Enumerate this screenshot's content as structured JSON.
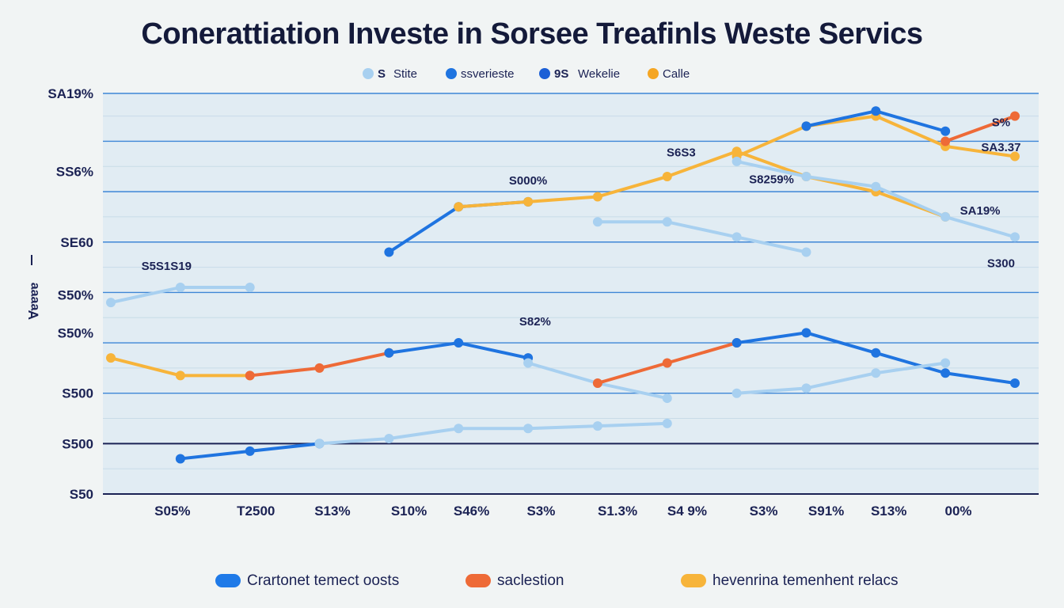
{
  "chart_data": {
    "type": "line",
    "title": "Conerattiation Investe in Sorsee Treafinls Weste Servics",
    "ylabel": "Ɐɐɐɐɐ",
    "y_tick_labels": [
      "S50",
      "S500",
      "S500",
      "S50%",
      "S50%",
      "SE60",
      "SS6%",
      "SA19%"
    ],
    "x_tick_labels": [
      "S05%",
      "T2500",
      "S13%",
      "S10%",
      "S46%",
      "S3%",
      "S1.3%",
      "S4 9%",
      "S3%",
      "S91%",
      "S13%",
      "00%"
    ],
    "x": [
      0,
      1,
      2,
      3,
      4,
      5,
      6,
      7,
      8,
      9,
      10,
      11,
      12,
      13
    ],
    "ylim": [
      0,
      7.95
    ],
    "grid": true,
    "top_legend": [
      {
        "label": "Stite",
        "marker": "S",
        "color": "#a8d0f0"
      },
      {
        "label": "ssverieste",
        "color": "#1f74e0"
      },
      {
        "label": "Wekelie",
        "marker": "9S",
        "color": "#1b5fd6"
      },
      {
        "label": "Calle",
        "color": "#f5a623"
      }
    ],
    "bottom_legend": [
      {
        "label": "Crartonet temect oosts",
        "color": "#1f7ae8"
      },
      {
        "label": "saclestion",
        "color": "#ee6a37"
      },
      {
        "label": "hevenrina temenhent relacs",
        "color": "#f7b43a"
      }
    ],
    "annotations": [
      {
        "text": "S5S1S19",
        "x": 0.8,
        "y": 4.45
      },
      {
        "text": "S000%",
        "x": 6.0,
        "y": 6.14
      },
      {
        "text": "S6S3",
        "x": 8.2,
        "y": 6.7
      },
      {
        "text": "S8259%",
        "x": 9.5,
        "y": 6.17
      },
      {
        "text": "S82%",
        "x": 6.1,
        "y": 3.35
      },
      {
        "text": "S%",
        "x": 12.8,
        "y": 7.3
      },
      {
        "text": "SA3.37",
        "x": 12.8,
        "y": 6.8
      },
      {
        "text": "SA19%",
        "x": 12.5,
        "y": 5.55
      },
      {
        "text": "S300",
        "x": 12.8,
        "y": 4.5
      }
    ],
    "series": [
      {
        "color": "#1f74e0",
        "width": 4,
        "values": [
          null,
          null,
          null,
          null,
          4.8,
          5.7,
          5.8,
          null,
          null,
          null,
          null,
          null,
          null,
          null
        ]
      },
      {
        "color": "#a8d0f0",
        "width": 4,
        "values": [
          3.8,
          4.1,
          4.1,
          null,
          null,
          null,
          null,
          5.4,
          5.4,
          5.1,
          4.8,
          null,
          null,
          null
        ]
      },
      {
        "color": "#f7b43a",
        "width": 4,
        "values": [
          null,
          null,
          null,
          null,
          null,
          5.7,
          5.8,
          5.9,
          6.3,
          6.8,
          6.3,
          6.0,
          5.5,
          null
        ]
      },
      {
        "color": "#f7b43a",
        "width": 4,
        "values": [
          null,
          null,
          null,
          null,
          null,
          null,
          null,
          null,
          null,
          6.7,
          7.3,
          7.5,
          6.9,
          6.7
        ]
      },
      {
        "color": "#1f74e0",
        "width": 4,
        "values": [
          null,
          null,
          null,
          null,
          null,
          null,
          null,
          null,
          null,
          null,
          7.3,
          7.6,
          7.2,
          null
        ]
      },
      {
        "color": "#ee6a37",
        "width": 4,
        "values": [
          null,
          null,
          null,
          null,
          null,
          null,
          null,
          null,
          null,
          null,
          null,
          null,
          7.0,
          7.5
        ]
      },
      {
        "color": "#a8d0f0",
        "width": 4,
        "values": [
          null,
          null,
          null,
          null,
          null,
          null,
          null,
          null,
          null,
          6.6,
          6.3,
          6.1,
          5.5,
          5.1
        ]
      },
      {
        "color": "#f7b43a",
        "width": 4,
        "values": [
          2.7,
          2.35,
          2.35,
          null,
          null,
          null,
          null,
          null,
          null,
          null,
          null,
          null,
          null,
          null
        ]
      },
      {
        "color": "#ee6a37",
        "width": 4,
        "values": [
          null,
          null,
          2.35,
          2.5,
          2.8,
          null,
          null,
          null,
          null,
          null,
          null,
          null,
          null,
          null
        ]
      },
      {
        "color": "#1f74e0",
        "width": 4,
        "values": [
          null,
          null,
          null,
          null,
          2.8,
          3.0,
          2.7,
          null,
          null,
          null,
          null,
          null,
          null,
          null
        ]
      },
      {
        "color": "#a8d0f0",
        "width": 4,
        "values": [
          null,
          null,
          null,
          null,
          null,
          null,
          2.6,
          2.2,
          1.9,
          null,
          null,
          null,
          null,
          null
        ]
      },
      {
        "color": "#ee6a37",
        "width": 4,
        "values": [
          null,
          null,
          null,
          null,
          null,
          null,
          null,
          2.2,
          2.6,
          3.0,
          null,
          null,
          null,
          null
        ]
      },
      {
        "color": "#1f74e0",
        "width": 4,
        "values": [
          null,
          null,
          null,
          null,
          null,
          null,
          null,
          null,
          null,
          3.0,
          3.2,
          2.8,
          2.4,
          2.2
        ]
      },
      {
        "color": "#a8d0f0",
        "width": 4,
        "values": [
          null,
          null,
          null,
          null,
          null,
          null,
          null,
          null,
          null,
          2.0,
          2.1,
          2.4,
          2.6,
          null
        ]
      },
      {
        "color": "#1f74e0",
        "width": 4,
        "values": [
          null,
          0.7,
          0.85,
          1.0,
          null,
          null,
          null,
          null,
          null,
          null,
          null,
          null,
          null,
          null
        ]
      },
      {
        "color": "#a8d0f0",
        "width": 4,
        "values": [
          null,
          null,
          null,
          1.0,
          1.1,
          1.3,
          1.3,
          1.35,
          1.4,
          null,
          null,
          null,
          null,
          null
        ]
      }
    ]
  }
}
